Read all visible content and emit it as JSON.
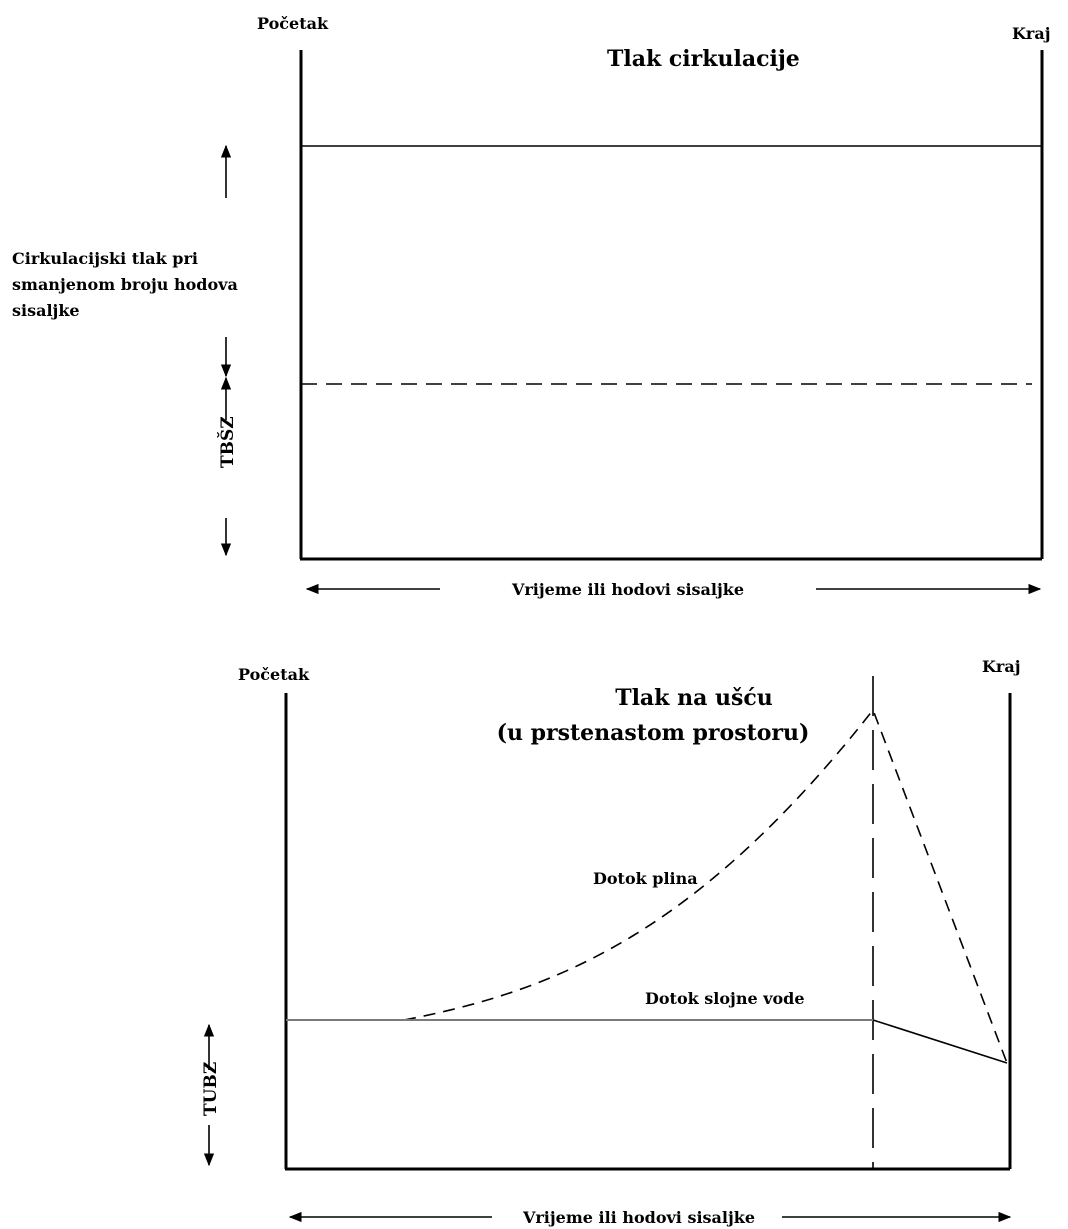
{
  "top": {
    "start_label": "Početak",
    "end_label": "Kraj",
    "title": "Tlak cirkulacije",
    "side_label_lines": [
      "Cirkulacijski tlak pri",
      "smanjenom broju hodova",
      "sisaljke"
    ],
    "vertical_label": "TBŠZ",
    "x_axis_label": "Vrijeme ili hodovi sisaljke"
  },
  "bottom": {
    "start_label": "Početak",
    "end_label": "Kraj",
    "title_lines": [
      "Tlak na ušću",
      "(u prstenastom prostoru)"
    ],
    "gas_label": "Dotok plina",
    "water_label": "Dotok slojne vode",
    "vertical_label": "TUBZ",
    "x_axis_label": "Vrijeme ili hodovi sisaljke"
  }
}
